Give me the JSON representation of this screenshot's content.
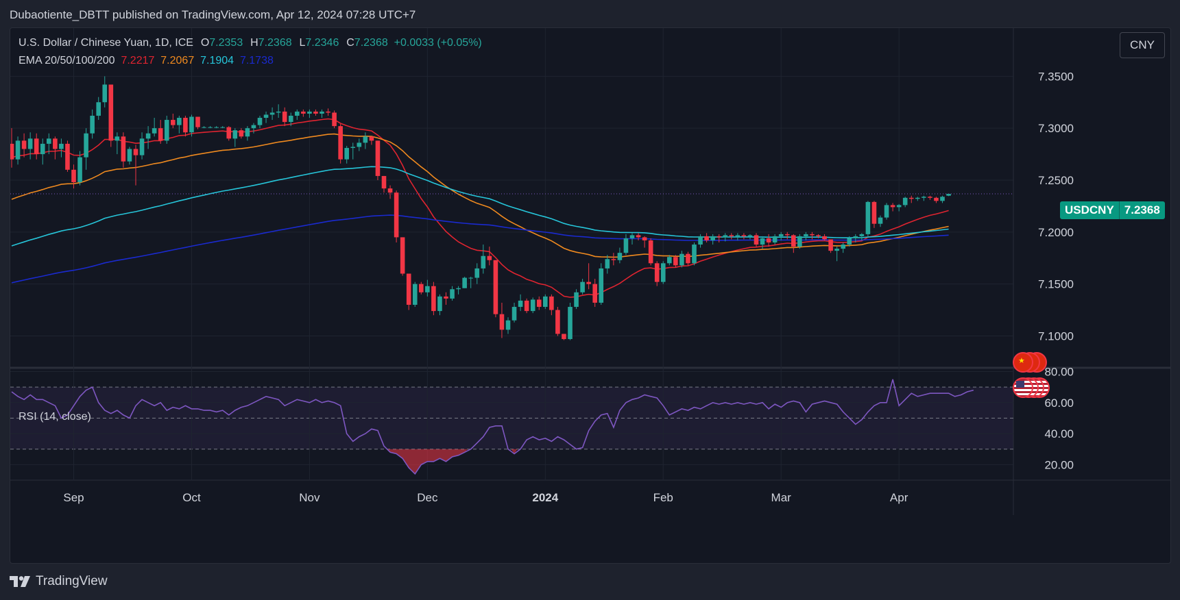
{
  "publisher_line": "Dubaotiente_DBTT published on TradingView.com, Apr 12, 2024 07:28 UTC+7",
  "legend": {
    "symbol": "U.S. Dollar / Chinese Yuan, 1D, ICE",
    "o_label": "O",
    "o": "7.2353",
    "h_label": "H",
    "h": "7.2368",
    "l_label": "L",
    "l": "7.2346",
    "c_label": "C",
    "c": "7.2368",
    "change": "+0.0033 (+0.05%)"
  },
  "ema_legend": {
    "label": "EMA 20/50/100/200",
    "values": [
      "7.2217",
      "7.2067",
      "7.1904",
      "7.1738"
    ]
  },
  "currency_button": "CNY",
  "price_tag": {
    "symbol": "USDCNY",
    "price": "7.2368"
  },
  "rsi_label": "RSI (14, close)",
  "footer_brand": "TradingView",
  "colors": {
    "background": "#131722",
    "up": "#26a69a",
    "down": "#f23645",
    "ema20": "#e02430",
    "ema50": "#f08a1f",
    "ema100": "#26c6da",
    "ema200": "#1a2ad0",
    "rsi": "#7e57c2",
    "price_tag": "#089981"
  },
  "chart_data": [
    {
      "type": "candlestick",
      "title": "U.S. Dollar / Chinese Yuan, 1D, ICE",
      "y_ticks": [
        "7.3500",
        "7.3000",
        "7.2500",
        "7.2000",
        "7.1500",
        "7.1000"
      ],
      "ylim": [
        7.07,
        7.37
      ],
      "x_ticks": [
        "Sep",
        "Oct",
        "Nov",
        "Dec",
        "2024",
        "Feb",
        "Mar",
        "Apr"
      ],
      "last_price": 7.2368,
      "candles_ohlc": [
        [
          7.285,
          7.3,
          7.262,
          7.27
        ],
        [
          7.27,
          7.292,
          7.265,
          7.288
        ],
        [
          7.288,
          7.295,
          7.272,
          7.28
        ],
        [
          7.28,
          7.296,
          7.27,
          7.29
        ],
        [
          7.29,
          7.295,
          7.27,
          7.275
        ],
        [
          7.275,
          7.29,
          7.265,
          7.285
        ],
        [
          7.285,
          7.295,
          7.275,
          7.29
        ],
        [
          7.29,
          7.292,
          7.27,
          7.28
        ],
        [
          7.28,
          7.29,
          7.272,
          7.285
        ],
        [
          7.285,
          7.288,
          7.258,
          7.26
        ],
        [
          7.26,
          7.265,
          7.242,
          7.248
        ],
        [
          7.248,
          7.278,
          7.245,
          7.272
        ],
        [
          7.272,
          7.3,
          7.26,
          7.295
        ],
        [
          7.295,
          7.318,
          7.29,
          7.312
        ],
        [
          7.312,
          7.33,
          7.308,
          7.325
        ],
        [
          7.325,
          7.35,
          7.32,
          7.342
        ],
        [
          7.342,
          7.342,
          7.282,
          7.288
        ],
        [
          7.288,
          7.296,
          7.275,
          7.292
        ],
        [
          7.292,
          7.296,
          7.262,
          7.268
        ],
        [
          7.268,
          7.282,
          7.265,
          7.28
        ],
        [
          7.28,
          7.284,
          7.245,
          7.274
        ],
        [
          7.274,
          7.296,
          7.27,
          7.29
        ],
        [
          7.29,
          7.302,
          7.28,
          7.295
        ],
        [
          7.295,
          7.31,
          7.292,
          7.3
        ],
        [
          7.3,
          7.308,
          7.285,
          7.288
        ],
        [
          7.288,
          7.312,
          7.285,
          7.308
        ],
        [
          7.308,
          7.314,
          7.3,
          7.303
        ],
        [
          7.303,
          7.312,
          7.295,
          7.31
        ],
        [
          7.31,
          7.312,
          7.292,
          7.296
        ],
        [
          7.296,
          7.313,
          7.292,
          7.311
        ],
        [
          7.311,
          7.311,
          7.299,
          7.301
        ],
        [
          7.301,
          7.302,
          7.3,
          7.301
        ],
        [
          7.301,
          7.302,
          7.3,
          7.301
        ],
        [
          7.301,
          7.302,
          7.3,
          7.301
        ],
        [
          7.301,
          7.302,
          7.3,
          7.301
        ],
        [
          7.301,
          7.302,
          7.288,
          7.29
        ],
        [
          7.29,
          7.3,
          7.282,
          7.298
        ],
        [
          7.298,
          7.3,
          7.29,
          7.292
        ],
        [
          7.292,
          7.302,
          7.288,
          7.3
        ],
        [
          7.3,
          7.305,
          7.295,
          7.303
        ],
        [
          7.303,
          7.312,
          7.3,
          7.31
        ],
        [
          7.31,
          7.316,
          7.305,
          7.313
        ],
        [
          7.313,
          7.32,
          7.308,
          7.315
        ],
        [
          7.315,
          7.323,
          7.31,
          7.316
        ],
        [
          7.316,
          7.32,
          7.302,
          7.306
        ],
        [
          7.306,
          7.315,
          7.302,
          7.312
        ],
        [
          7.312,
          7.318,
          7.308,
          7.316
        ],
        [
          7.316,
          7.318,
          7.311,
          7.314
        ],
        [
          7.314,
          7.318,
          7.31,
          7.316
        ],
        [
          7.316,
          7.318,
          7.312,
          7.314
        ],
        [
          7.314,
          7.318,
          7.31,
          7.316
        ],
        [
          7.316,
          7.319,
          7.312,
          7.315
        ],
        [
          7.315,
          7.317,
          7.3,
          7.302
        ],
        [
          7.302,
          7.304,
          7.266,
          7.27
        ],
        [
          7.27,
          7.283,
          7.266,
          7.281
        ],
        [
          7.281,
          7.286,
          7.27,
          7.282
        ],
        [
          7.282,
          7.29,
          7.278,
          7.286
        ],
        [
          7.286,
          7.296,
          7.28,
          7.292
        ],
        [
          7.292,
          7.292,
          7.284,
          7.288
        ],
        [
          7.288,
          7.288,
          7.25,
          7.254
        ],
        [
          7.254,
          7.254,
          7.238,
          7.242
        ],
        [
          7.242,
          7.245,
          7.232,
          7.238
        ],
        [
          7.238,
          7.24,
          7.19,
          7.195
        ],
        [
          7.195,
          7.195,
          7.158,
          7.16
        ],
        [
          7.16,
          7.16,
          7.125,
          7.13
        ],
        [
          7.13,
          7.152,
          7.128,
          7.15
        ],
        [
          7.15,
          7.152,
          7.14,
          7.142
        ],
        [
          7.142,
          7.154,
          7.138,
          7.148
        ],
        [
          7.148,
          7.152,
          7.12,
          7.124
        ],
        [
          7.124,
          7.14,
          7.12,
          7.138
        ],
        [
          7.138,
          7.142,
          7.13,
          7.136
        ],
        [
          7.136,
          7.148,
          7.134,
          7.145
        ],
        [
          7.145,
          7.148,
          7.14,
          7.146
        ],
        [
          7.146,
          7.157,
          7.146,
          7.156
        ],
        [
          7.156,
          7.157,
          7.146,
          7.156
        ],
        [
          7.156,
          7.17,
          7.15,
          7.165
        ],
        [
          7.165,
          7.188,
          7.16,
          7.177
        ],
        [
          7.177,
          7.186,
          7.168,
          7.173
        ],
        [
          7.173,
          7.173,
          7.118,
          7.121
        ],
        [
          7.121,
          7.132,
          7.098,
          7.106
        ],
        [
          7.106,
          7.118,
          7.102,
          7.115
        ],
        [
          7.115,
          7.132,
          7.113,
          7.128
        ],
        [
          7.128,
          7.14,
          7.124,
          7.134
        ],
        [
          7.134,
          7.136,
          7.122,
          7.124
        ],
        [
          7.124,
          7.137,
          7.122,
          7.135
        ],
        [
          7.135,
          7.138,
          7.125,
          7.128
        ],
        [
          7.128,
          7.14,
          7.126,
          7.138
        ],
        [
          7.138,
          7.14,
          7.12,
          7.125
        ],
        [
          7.125,
          7.128,
          7.1,
          7.102
        ],
        [
          7.102,
          7.102,
          7.096,
          7.097
        ],
        [
          7.097,
          7.132,
          7.096,
          7.128
        ],
        [
          7.128,
          7.145,
          7.126,
          7.142
        ],
        [
          7.142,
          7.155,
          7.14,
          7.152
        ],
        [
          7.152,
          7.17,
          7.145,
          7.15
        ],
        [
          7.15,
          7.155,
          7.128,
          7.132
        ],
        [
          7.132,
          7.17,
          7.13,
          7.165
        ],
        [
          7.165,
          7.178,
          7.16,
          7.174
        ],
        [
          7.174,
          7.18,
          7.168,
          7.173
        ],
        [
          7.173,
          7.185,
          7.17,
          7.18
        ],
        [
          7.18,
          7.198,
          7.178,
          7.194
        ],
        [
          7.194,
          7.199,
          7.188,
          7.197
        ],
        [
          7.197,
          7.199,
          7.192,
          7.195
        ],
        [
          7.195,
          7.196,
          7.185,
          7.192
        ],
        [
          7.192,
          7.194,
          7.168,
          7.17
        ],
        [
          7.17,
          7.172,
          7.148,
          7.152
        ],
        [
          7.152,
          7.172,
          7.15,
          7.17
        ],
        [
          7.17,
          7.178,
          7.168,
          7.176
        ],
        [
          7.176,
          7.178,
          7.166,
          7.168
        ],
        [
          7.168,
          7.182,
          7.166,
          7.179
        ],
        [
          7.179,
          7.181,
          7.168,
          7.17
        ],
        [
          7.17,
          7.19,
          7.168,
          7.188
        ],
        [
          7.188,
          7.198,
          7.185,
          7.196
        ],
        [
          7.196,
          7.199,
          7.19,
          7.192
        ],
        [
          7.192,
          7.198,
          7.188,
          7.196
        ],
        [
          7.196,
          7.198,
          7.19,
          7.195
        ],
        [
          7.195,
          7.199,
          7.191,
          7.197
        ],
        [
          7.197,
          7.199,
          7.193,
          7.196
        ],
        [
          7.196,
          7.199,
          7.192,
          7.197
        ],
        [
          7.197,
          7.199,
          7.193,
          7.196
        ],
        [
          7.196,
          7.198,
          7.193,
          7.197
        ],
        [
          7.197,
          7.199,
          7.186,
          7.188
        ],
        [
          7.188,
          7.196,
          7.184,
          7.194
        ],
        [
          7.194,
          7.198,
          7.186,
          7.19
        ],
        [
          7.19,
          7.198,
          7.188,
          7.196
        ],
        [
          7.196,
          7.2,
          7.192,
          7.198
        ],
        [
          7.198,
          7.2,
          7.193,
          7.197
        ],
        [
          7.197,
          7.198,
          7.18,
          7.186
        ],
        [
          7.186,
          7.198,
          7.184,
          7.196
        ],
        [
          7.196,
          7.2,
          7.192,
          7.198
        ],
        [
          7.198,
          7.2,
          7.193,
          7.197
        ],
        [
          7.197,
          7.198,
          7.194,
          7.196
        ],
        [
          7.196,
          7.198,
          7.192,
          7.193
        ],
        [
          7.193,
          7.193,
          7.18,
          7.182
        ],
        [
          7.182,
          7.186,
          7.172,
          7.184
        ],
        [
          7.184,
          7.19,
          7.18,
          7.188
        ],
        [
          7.188,
          7.196,
          7.186,
          7.194
        ],
        [
          7.194,
          7.198,
          7.19,
          7.196
        ],
        [
          7.196,
          7.199,
          7.192,
          7.198
        ],
        [
          7.198,
          7.23,
          7.196,
          7.229
        ],
        [
          7.229,
          7.23,
          7.204,
          7.208
        ],
        [
          7.208,
          7.216,
          7.205,
          7.214
        ],
        [
          7.214,
          7.228,
          7.212,
          7.226
        ],
        [
          7.226,
          7.228,
          7.22,
          7.224
        ],
        [
          7.224,
          7.227,
          7.22,
          7.226
        ],
        [
          7.226,
          7.234,
          7.224,
          7.233
        ],
        [
          7.233,
          7.235,
          7.228,
          7.232
        ],
        [
          7.232,
          7.234,
          7.23,
          7.233
        ],
        [
          7.233,
          7.235,
          7.23,
          7.234
        ],
        [
          7.234,
          7.235,
          7.231,
          7.233
        ],
        [
          7.233,
          7.234,
          7.228,
          7.23
        ],
        [
          7.23,
          7.235,
          7.228,
          7.234
        ],
        [
          7.235,
          7.2368,
          7.2346,
          7.2368
        ]
      ],
      "ema": [
        {
          "label": "EMA 20",
          "value": "7.2217"
        },
        {
          "label": "EMA 50",
          "value": "7.2067"
        },
        {
          "label": "EMA 100",
          "value": "7.1904"
        },
        {
          "label": "EMA 200",
          "value": "7.1738"
        }
      ]
    },
    {
      "type": "line",
      "title": "RSI (14, close)",
      "y_ticks": [
        "80.00",
        "60.00",
        "40.00",
        "20.00"
      ],
      "ylim": [
        10,
        82
      ],
      "bands": [
        70,
        50,
        30
      ],
      "values": [
        67,
        64,
        62,
        65,
        62,
        62,
        60,
        58,
        50,
        52,
        58,
        64,
        68,
        70,
        60,
        55,
        53,
        55,
        52,
        50,
        58,
        62,
        60,
        58,
        60,
        55,
        57,
        56,
        58,
        56,
        56,
        55,
        55,
        54,
        55,
        52,
        55,
        57,
        58,
        60,
        62,
        64,
        63,
        62,
        58,
        60,
        62,
        61,
        60,
        62,
        60,
        61,
        60,
        58,
        40,
        35,
        38,
        40,
        43,
        42,
        32,
        28,
        27,
        24,
        18,
        14,
        20,
        22,
        22,
        24,
        22,
        25,
        26,
        28,
        30,
        34,
        38,
        44,
        45,
        45,
        30,
        27,
        30,
        36,
        38,
        36,
        37,
        35,
        38,
        36,
        33,
        30,
        31,
        42,
        48,
        52,
        53,
        44,
        55,
        60,
        62,
        63,
        65,
        64,
        63,
        58,
        52,
        54,
        56,
        55,
        57,
        56,
        58,
        60,
        59,
        60,
        59,
        60,
        59,
        60,
        59,
        60,
        56,
        59,
        57,
        60,
        61,
        60,
        54,
        59,
        60,
        61,
        60,
        59,
        54,
        50,
        46,
        49,
        54,
        58,
        60,
        60,
        75,
        58,
        62,
        66,
        64,
        65,
        66,
        66,
        66,
        66,
        64,
        65,
        67,
        68
      ]
    }
  ]
}
